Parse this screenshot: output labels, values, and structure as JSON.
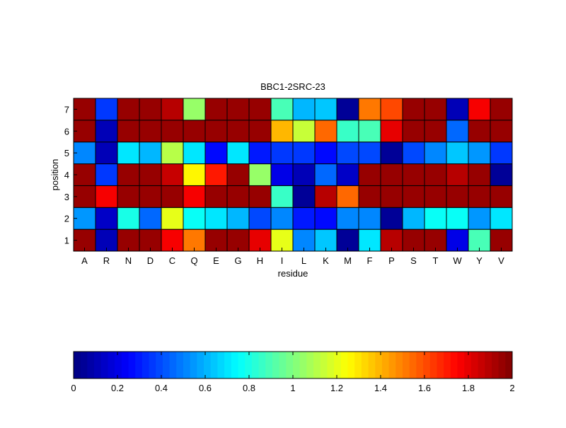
{
  "chart_data": {
    "type": "heatmap",
    "title": "BBC1-2SRC-23",
    "xlabel": "residue",
    "ylabel": "position",
    "x_categories": [
      "A",
      "R",
      "N",
      "D",
      "C",
      "Q",
      "E",
      "G",
      "H",
      "I",
      "L",
      "K",
      "M",
      "F",
      "P",
      "S",
      "T",
      "W",
      "Y",
      "V"
    ],
    "y_categories": [
      "1",
      "2",
      "3",
      "4",
      "5",
      "6",
      "7"
    ],
    "values": [
      [
        1.95,
        0.1,
        1.95,
        1.95,
        1.75,
        1.5,
        1.95,
        1.95,
        1.8,
        1.2,
        0.5,
        0.65,
        0.05,
        0.7,
        1.9,
        1.95,
        1.95,
        0.2,
        0.9,
        1.95
      ],
      [
        0.55,
        0.15,
        0.8,
        0.45,
        1.2,
        0.75,
        0.7,
        0.6,
        0.4,
        0.5,
        0.3,
        0.25,
        0.5,
        0.5,
        0.05,
        0.6,
        0.75,
        0.75,
        0.55,
        0.7
      ],
      [
        1.95,
        1.75,
        1.95,
        1.95,
        1.95,
        1.75,
        1.95,
        1.95,
        1.95,
        0.85,
        0.05,
        1.9,
        1.55,
        1.95,
        1.95,
        1.95,
        1.95,
        1.95,
        1.95,
        1.95
      ],
      [
        1.95,
        0.35,
        1.95,
        1.95,
        1.85,
        1.25,
        1.7,
        1.95,
        1.05,
        0.2,
        0.1,
        0.45,
        0.15,
        1.95,
        1.95,
        1.95,
        1.95,
        1.9,
        1.95,
        0.05
      ],
      [
        0.5,
        0.1,
        0.7,
        0.6,
        1.1,
        0.7,
        0.25,
        0.7,
        0.3,
        0.35,
        0.35,
        0.25,
        0.4,
        0.4,
        0.05,
        0.4,
        0.5,
        0.65,
        0.55,
        0.35
      ],
      [
        1.95,
        0.1,
        1.95,
        1.95,
        1.95,
        1.95,
        1.95,
        1.95,
        1.95,
        1.4,
        1.15,
        1.55,
        0.85,
        0.9,
        1.8,
        1.95,
        1.95,
        0.45,
        1.95,
        1.95
      ],
      [
        1.95,
        0.35,
        1.95,
        1.95,
        1.9,
        1.05,
        1.95,
        1.95,
        1.95,
        0.9,
        0.6,
        0.65,
        0.05,
        1.5,
        1.6,
        1.95,
        1.95,
        0.1,
        1.75,
        1.95
      ]
    ],
    "value_range": [
      0,
      2
    ],
    "colormap": "jet",
    "grid": false,
    "colorbar": {
      "orientation": "horizontal",
      "placement": "bottom",
      "ticks": [
        "0",
        "0.2",
        "0.4",
        "0.6",
        "0.8",
        "1",
        "1.2",
        "1.4",
        "1.6",
        "1.8",
        "2"
      ],
      "tick_values": [
        0,
        0.2,
        0.4,
        0.6,
        0.8,
        1.0,
        1.2,
        1.4,
        1.6,
        1.8,
        2.0
      ]
    }
  }
}
